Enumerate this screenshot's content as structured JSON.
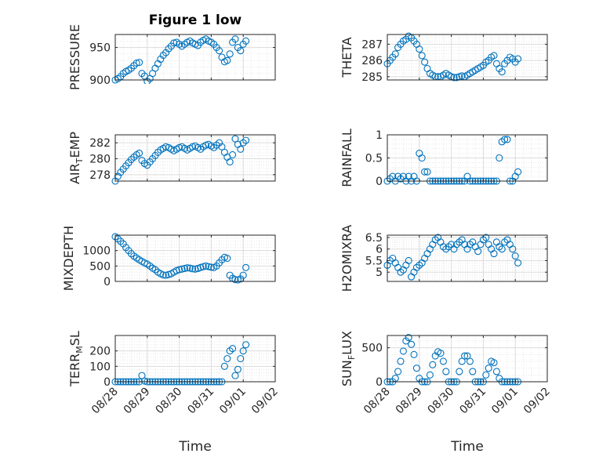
{
  "figure": {
    "title": "Figure 1 low",
    "xlabel": "Time",
    "date_ticks": [
      "08/28",
      "08/29",
      "08/30",
      "08/31",
      "09/01",
      "09/02"
    ]
  },
  "style": {
    "marker_color": "#0072BD",
    "grid": true,
    "minor_grid": true
  },
  "chart_data": [
    {
      "type": "scatter",
      "title": "Figure 1 low",
      "ylabel": "PRESSURE",
      "xlim": [
        "08/28",
        "09/02"
      ],
      "ylim": [
        900,
        970
      ],
      "yticks": [
        "900",
        "950"
      ],
      "yticks_values": [
        900,
        950
      ],
      "x": [
        "08/28 00:00",
        "08/28 02:00",
        "08/28 04:00",
        "08/28 06:00",
        "08/28 08:00",
        "08/28 10:00",
        "08/28 12:00",
        "08/28 14:00",
        "08/28 16:00",
        "08/28 18:00",
        "08/28 20:00",
        "08/28 22:00",
        "08/29 00:00",
        "08/29 02:00",
        "08/29 04:00",
        "08/29 06:00",
        "08/29 08:00",
        "08/29 10:00",
        "08/29 12:00",
        "08/29 14:00",
        "08/29 16:00",
        "08/29 18:00",
        "08/29 20:00",
        "08/29 22:00",
        "08/30 00:00",
        "08/30 02:00",
        "08/30 04:00",
        "08/30 06:00",
        "08/30 08:00",
        "08/30 10:00",
        "08/30 12:00",
        "08/30 14:00",
        "08/30 16:00",
        "08/30 18:00",
        "08/30 20:00",
        "08/30 22:00",
        "08/31 00:00",
        "08/31 02:00",
        "08/31 04:00",
        "08/31 06:00",
        "08/31 08:00",
        "08/31 10:00",
        "08/31 12:00",
        "08/31 14:00",
        "08/31 16:00",
        "08/31 18:00",
        "08/31 20:00",
        "08/31 22:00",
        "09/01 00:00",
        "09/01 02:00"
      ],
      "y": [
        900,
        902,
        905,
        910,
        913,
        915,
        918,
        922,
        926,
        927,
        910,
        906,
        898,
        902,
        910,
        918,
        925,
        932,
        938,
        942,
        948,
        952,
        957,
        958,
        955,
        952,
        955,
        958,
        960,
        957,
        955,
        953,
        958,
        961,
        963,
        960,
        958,
        955,
        950,
        945,
        935,
        928,
        930,
        940,
        958,
        963,
        950,
        945,
        955,
        960
      ]
    },
    {
      "type": "scatter",
      "ylabel": "THETA",
      "xlim": [
        "08/28",
        "09/02"
      ],
      "ylim": [
        284.8,
        287.6
      ],
      "yticks": [
        "285",
        "286",
        "287"
      ],
      "yticks_values": [
        285,
        286,
        287
      ],
      "x": [
        "08/28 00:00",
        "08/28 02:00",
        "08/28 04:00",
        "08/28 06:00",
        "08/28 08:00",
        "08/28 10:00",
        "08/28 12:00",
        "08/28 14:00",
        "08/28 16:00",
        "08/28 18:00",
        "08/28 20:00",
        "08/28 22:00",
        "08/29 00:00",
        "08/29 02:00",
        "08/29 04:00",
        "08/29 06:00",
        "08/29 08:00",
        "08/29 10:00",
        "08/29 12:00",
        "08/29 14:00",
        "08/29 16:00",
        "08/29 18:00",
        "08/29 20:00",
        "08/29 22:00",
        "08/30 00:00",
        "08/30 02:00",
        "08/30 04:00",
        "08/30 06:00",
        "08/30 08:00",
        "08/30 10:00",
        "08/30 12:00",
        "08/30 14:00",
        "08/30 16:00",
        "08/30 18:00",
        "08/30 20:00",
        "08/30 22:00",
        "08/31 00:00",
        "08/31 02:00",
        "08/31 04:00",
        "08/31 06:00",
        "08/31 08:00",
        "08/31 10:00",
        "08/31 12:00",
        "08/31 14:00",
        "08/31 16:00",
        "08/31 18:00",
        "08/31 20:00",
        "08/31 22:00",
        "09/01 00:00",
        "09/01 02:00"
      ],
      "y": [
        285.8,
        286.0,
        286.2,
        286.4,
        286.8,
        287.0,
        287.2,
        287.3,
        287.5,
        287.4,
        287.2,
        287.0,
        286.7,
        286.3,
        285.9,
        285.5,
        285.2,
        285.1,
        285.0,
        285.0,
        285.0,
        285.1,
        285.2,
        285.1,
        285.0,
        284.95,
        284.95,
        285.0,
        285.05,
        285.0,
        285.1,
        285.2,
        285.3,
        285.4,
        285.5,
        285.6,
        285.7,
        285.9,
        286.0,
        286.2,
        286.3,
        285.8,
        285.5,
        285.3,
        285.8,
        286.0,
        286.2,
        286.1,
        285.9,
        286.1
      ]
    },
    {
      "type": "scatter",
      "ylabel": "AIR_TEMP",
      "ylabel_main": "AIR",
      "ylabel_sub": "T",
      "ylabel_tail": "EMP",
      "xlim": [
        "08/28",
        "09/02"
      ],
      "ylim": [
        277.2,
        283
      ],
      "yticks": [
        "278",
        "280",
        "282"
      ],
      "yticks_values": [
        278,
        280,
        282
      ],
      "x": [
        "08/28 00:00",
        "08/28 02:00",
        "08/28 04:00",
        "08/28 06:00",
        "08/28 08:00",
        "08/28 10:00",
        "08/28 12:00",
        "08/28 14:00",
        "08/28 16:00",
        "08/28 18:00",
        "08/28 20:00",
        "08/28 22:00",
        "08/29 00:00",
        "08/29 02:00",
        "08/29 04:00",
        "08/29 06:00",
        "08/29 08:00",
        "08/29 10:00",
        "08/29 12:00",
        "08/29 14:00",
        "08/29 16:00",
        "08/29 18:00",
        "08/29 20:00",
        "08/29 22:00",
        "08/30 00:00",
        "08/30 02:00",
        "08/30 04:00",
        "08/30 06:00",
        "08/30 08:00",
        "08/30 10:00",
        "08/30 12:00",
        "08/30 14:00",
        "08/30 16:00",
        "08/30 18:00",
        "08/30 20:00",
        "08/30 22:00",
        "08/31 00:00",
        "08/31 02:00",
        "08/31 04:00",
        "08/31 06:00",
        "08/31 08:00",
        "08/31 10:00",
        "08/31 12:00",
        "08/31 14:00",
        "08/31 16:00",
        "08/31 18:00",
        "08/31 20:00",
        "08/31 22:00",
        "09/01 00:00",
        "09/01 02:00"
      ],
      "y": [
        277.2,
        277.8,
        278.3,
        278.7,
        279.1,
        279.5,
        279.9,
        280.2,
        280.5,
        280.7,
        279.8,
        279.4,
        279.2,
        279.6,
        280.0,
        280.4,
        280.8,
        281.1,
        281.3,
        281.5,
        281.4,
        281.2,
        281.0,
        281.2,
        281.4,
        281.5,
        281.3,
        281.1,
        281.3,
        281.5,
        281.6,
        281.4,
        281.2,
        281.5,
        281.7,
        281.8,
        281.6,
        281.4,
        281.7,
        282.0,
        281.5,
        280.8,
        280.2,
        279.6,
        280.5,
        282.5,
        281.8,
        281.2,
        282.0,
        282.3
      ]
    },
    {
      "type": "scatter",
      "ylabel": "RAINFALL",
      "xlim": [
        "08/28",
        "09/02"
      ],
      "ylim": [
        0,
        1
      ],
      "yticks": [
        "0",
        "0.5",
        "1"
      ],
      "yticks_values": [
        0,
        0.5,
        1
      ],
      "x": [
        "08/28 00:00",
        "08/28 02:00",
        "08/28 04:00",
        "08/28 06:00",
        "08/28 08:00",
        "08/28 10:00",
        "08/28 12:00",
        "08/28 14:00",
        "08/28 16:00",
        "08/28 18:00",
        "08/28 20:00",
        "08/28 22:00",
        "08/29 00:00",
        "08/29 02:00",
        "08/29 04:00",
        "08/29 06:00",
        "08/29 08:00",
        "08/29 10:00",
        "08/29 12:00",
        "08/29 14:00",
        "08/29 16:00",
        "08/29 18:00",
        "08/29 20:00",
        "08/29 22:00",
        "08/30 00:00",
        "08/30 02:00",
        "08/30 04:00",
        "08/30 06:00",
        "08/30 08:00",
        "08/30 10:00",
        "08/30 12:00",
        "08/30 14:00",
        "08/30 16:00",
        "08/30 18:00",
        "08/30 20:00",
        "08/30 22:00",
        "08/31 00:00",
        "08/31 02:00",
        "08/31 04:00",
        "08/31 06:00",
        "08/31 08:00",
        "08/31 10:00",
        "08/31 12:00",
        "08/31 14:00",
        "08/31 16:00",
        "08/31 18:00",
        "08/31 20:00",
        "08/31 22:00",
        "09/01 00:00",
        "09/01 02:00"
      ],
      "y": [
        0,
        0.05,
        0.1,
        0,
        0.1,
        0.05,
        0.1,
        0,
        0.1,
        0,
        0.1,
        0,
        0.6,
        0.5,
        0.2,
        0.2,
        0,
        0,
        0,
        0,
        0,
        0,
        0,
        0,
        0,
        0,
        0,
        0,
        0,
        0,
        0.1,
        0,
        0,
        0,
        0,
        0,
        0,
        0,
        0,
        0,
        0,
        0,
        0.5,
        0.85,
        0.9,
        0.9,
        0,
        0,
        0.1,
        0.2
      ]
    },
    {
      "type": "scatter",
      "ylabel": "MIXDEPTH",
      "xlim": [
        "08/28",
        "09/02"
      ],
      "ylim": [
        0,
        1500
      ],
      "yticks": [
        "0",
        "500",
        "1000"
      ],
      "yticks_values": [
        0,
        500,
        1000
      ],
      "x": [
        "08/28 00:00",
        "08/28 02:00",
        "08/28 04:00",
        "08/28 06:00",
        "08/28 08:00",
        "08/28 10:00",
        "08/28 12:00",
        "08/28 14:00",
        "08/28 16:00",
        "08/28 18:00",
        "08/28 20:00",
        "08/28 22:00",
        "08/29 00:00",
        "08/29 02:00",
        "08/29 04:00",
        "08/29 06:00",
        "08/29 08:00",
        "08/29 10:00",
        "08/29 12:00",
        "08/29 14:00",
        "08/29 16:00",
        "08/29 18:00",
        "08/29 20:00",
        "08/29 22:00",
        "08/30 00:00",
        "08/30 02:00",
        "08/30 04:00",
        "08/30 06:00",
        "08/30 08:00",
        "08/30 10:00",
        "08/30 12:00",
        "08/30 14:00",
        "08/30 16:00",
        "08/30 18:00",
        "08/30 20:00",
        "08/30 22:00",
        "08/31 00:00",
        "08/31 02:00",
        "08/31 04:00",
        "08/31 06:00",
        "08/31 08:00",
        "08/31 10:00",
        "08/31 12:00",
        "08/31 14:00",
        "08/31 16:00",
        "08/31 18:00",
        "08/31 20:00",
        "08/31 22:00",
        "09/01 00:00",
        "09/01 02:00"
      ],
      "y": [
        1450,
        1380,
        1300,
        1220,
        1100,
        1000,
        900,
        820,
        760,
        700,
        650,
        600,
        560,
        500,
        430,
        380,
        300,
        250,
        210,
        200,
        220,
        250,
        300,
        350,
        380,
        400,
        420,
        440,
        430,
        410,
        400,
        420,
        450,
        480,
        500,
        480,
        460,
        450,
        500,
        600,
        700,
        780,
        750,
        200,
        100,
        60,
        50,
        80,
        200,
        450
      ]
    },
    {
      "type": "scatter",
      "ylabel": "H2OMIXRA",
      "xlim": [
        "08/28",
        "09/02"
      ],
      "ylim": [
        4.6,
        6.6
      ],
      "yticks": [
        "5",
        "5.5",
        "6",
        "6.5"
      ],
      "yticks_values": [
        5,
        5.5,
        6,
        6.5
      ],
      "x": [
        "08/28 00:00",
        "08/28 02:00",
        "08/28 04:00",
        "08/28 06:00",
        "08/28 08:00",
        "08/28 10:00",
        "08/28 12:00",
        "08/28 14:00",
        "08/28 16:00",
        "08/28 18:00",
        "08/28 20:00",
        "08/28 22:00",
        "08/29 00:00",
        "08/29 02:00",
        "08/29 04:00",
        "08/29 06:00",
        "08/29 08:00",
        "08/29 10:00",
        "08/29 12:00",
        "08/29 14:00",
        "08/29 16:00",
        "08/29 18:00",
        "08/29 20:00",
        "08/29 22:00",
        "08/30 00:00",
        "08/30 02:00",
        "08/30 04:00",
        "08/30 06:00",
        "08/30 08:00",
        "08/30 10:00",
        "08/30 12:00",
        "08/30 14:00",
        "08/30 16:00",
        "08/30 18:00",
        "08/30 20:00",
        "08/30 22:00",
        "08/31 00:00",
        "08/31 02:00",
        "08/31 04:00",
        "08/31 06:00",
        "08/31 08:00",
        "08/31 10:00",
        "08/31 12:00",
        "08/31 14:00",
        "08/31 16:00",
        "08/31 18:00",
        "08/31 20:00",
        "08/31 22:00",
        "09/01 00:00",
        "09/01 02:00"
      ],
      "y": [
        5.3,
        5.5,
        5.6,
        5.4,
        5.2,
        5.0,
        5.1,
        5.3,
        5.5,
        4.8,
        5.0,
        5.2,
        5.3,
        5.4,
        5.6,
        5.8,
        6.0,
        6.2,
        6.4,
        6.5,
        6.3,
        6.1,
        6.0,
        6.1,
        6.2,
        6.0,
        6.2,
        6.3,
        6.4,
        6.2,
        6.0,
        6.2,
        6.3,
        6.1,
        5.9,
        6.2,
        6.4,
        6.5,
        6.2,
        6.0,
        5.8,
        6.3,
        6.1,
        6.0,
        6.3,
        6.4,
        6.2,
        6.0,
        5.7,
        5.4
      ]
    },
    {
      "type": "scatter",
      "ylabel": "TERR_MSL",
      "ylabel_main": "TERR",
      "ylabel_sub": "M",
      "ylabel_tail": "SL",
      "xlim": [
        "08/28",
        "09/02"
      ],
      "ylim": [
        0,
        300
      ],
      "yticks": [
        "0",
        "100",
        "200"
      ],
      "yticks_values": [
        0,
        100,
        200
      ],
      "x": [
        "08/28 00:00",
        "08/28 02:00",
        "08/28 04:00",
        "08/28 06:00",
        "08/28 08:00",
        "08/28 10:00",
        "08/28 12:00",
        "08/28 14:00",
        "08/28 16:00",
        "08/28 18:00",
        "08/28 20:00",
        "08/28 22:00",
        "08/29 00:00",
        "08/29 02:00",
        "08/29 04:00",
        "08/29 06:00",
        "08/29 08:00",
        "08/29 10:00",
        "08/29 12:00",
        "08/29 14:00",
        "08/29 16:00",
        "08/29 18:00",
        "08/29 20:00",
        "08/29 22:00",
        "08/30 00:00",
        "08/30 02:00",
        "08/30 04:00",
        "08/30 06:00",
        "08/30 08:00",
        "08/30 10:00",
        "08/30 12:00",
        "08/30 14:00",
        "08/30 16:00",
        "08/30 18:00",
        "08/30 20:00",
        "08/30 22:00",
        "08/31 00:00",
        "08/31 02:00",
        "08/31 04:00",
        "08/31 06:00",
        "08/31 08:00",
        "08/31 10:00",
        "08/31 12:00",
        "08/31 14:00",
        "08/31 16:00",
        "08/31 18:00",
        "08/31 20:00",
        "08/31 22:00",
        "09/01 00:00",
        "09/01 02:00"
      ],
      "y": [
        0,
        0,
        0,
        0,
        0,
        0,
        0,
        0,
        0,
        0,
        40,
        5,
        0,
        0,
        0,
        0,
        0,
        0,
        0,
        0,
        0,
        0,
        0,
        0,
        0,
        0,
        0,
        0,
        0,
        0,
        0,
        0,
        0,
        0,
        0,
        0,
        0,
        0,
        0,
        0,
        0,
        100,
        150,
        200,
        215,
        40,
        80,
        150,
        200,
        240
      ]
    },
    {
      "type": "scatter",
      "ylabel": "SUN_FLUX",
      "ylabel_main": "SUN",
      "ylabel_sub": "F",
      "ylabel_tail": "LUX",
      "xlim": [
        "08/28",
        "09/02"
      ],
      "ylim": [
        0,
        680
      ],
      "yticks": [
        "0",
        "500"
      ],
      "yticks_values": [
        0,
        500
      ],
      "x": [
        "08/28 00:00",
        "08/28 02:00",
        "08/28 04:00",
        "08/28 06:00",
        "08/28 08:00",
        "08/28 10:00",
        "08/28 12:00",
        "08/28 14:00",
        "08/28 16:00",
        "08/28 18:00",
        "08/28 20:00",
        "08/28 22:00",
        "08/29 00:00",
        "08/29 02:00",
        "08/29 04:00",
        "08/29 06:00",
        "08/29 08:00",
        "08/29 10:00",
        "08/29 12:00",
        "08/29 14:00",
        "08/29 16:00",
        "08/29 18:00",
        "08/29 20:00",
        "08/29 22:00",
        "08/30 00:00",
        "08/30 02:00",
        "08/30 04:00",
        "08/30 06:00",
        "08/30 08:00",
        "08/30 10:00",
        "08/30 12:00",
        "08/30 14:00",
        "08/30 16:00",
        "08/30 18:00",
        "08/30 20:00",
        "08/30 22:00",
        "08/31 00:00",
        "08/31 02:00",
        "08/31 04:00",
        "08/31 06:00",
        "08/31 08:00",
        "08/31 10:00",
        "08/31 12:00",
        "08/31 14:00",
        "08/31 16:00",
        "08/31 18:00",
        "08/31 20:00",
        "08/31 22:00",
        "09/01 00:00",
        "09/01 02:00"
      ],
      "y": [
        0,
        0,
        0,
        50,
        150,
        300,
        450,
        600,
        650,
        550,
        400,
        200,
        50,
        0,
        0,
        0,
        100,
        250,
        380,
        440,
        420,
        300,
        150,
        0,
        0,
        0,
        0,
        150,
        300,
        380,
        380,
        300,
        150,
        0,
        0,
        0,
        0,
        100,
        200,
        300,
        280,
        150,
        50,
        0,
        0,
        0,
        0,
        0,
        0,
        0
      ]
    }
  ]
}
